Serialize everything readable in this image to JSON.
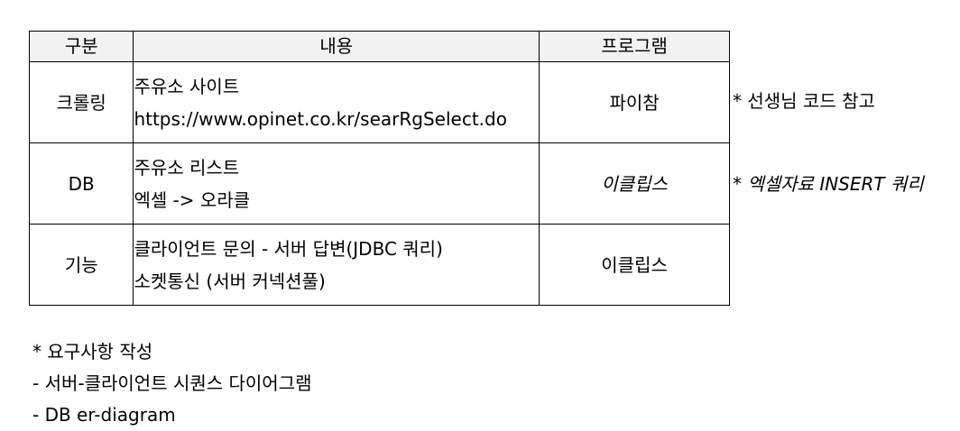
{
  "table": {
    "headers": [
      "구분",
      "내용",
      "프로그램"
    ],
    "rows": [
      {
        "category": "크롤링",
        "content": [
          "주유소 사이트",
          "https://www.opinet.co.kr/searRgSelect.do"
        ],
        "program": "파이참",
        "program_italic": false
      },
      {
        "category": "DB",
        "content": [
          "주유소 리스트",
          "엑셀 -> 오라클"
        ],
        "program": "이클립스",
        "program_italic": true
      },
      {
        "category": "기능",
        "content": [
          "클라이언트 문의 - 서버 답변(JDBC 쿼리)",
          "소켓통신 (서버 커넥션풀)"
        ],
        "program": "이클립스",
        "program_italic": false
      }
    ]
  },
  "side_notes": [
    "* 선생님 코드 참고",
    "* 엑셀자료 INSERT 쿼리"
  ],
  "bottom_notes": [
    "* 요구사항 작성",
    "- 서버-클라이언트 시퀀스 다이어그램",
    "- DB er-diagram"
  ]
}
